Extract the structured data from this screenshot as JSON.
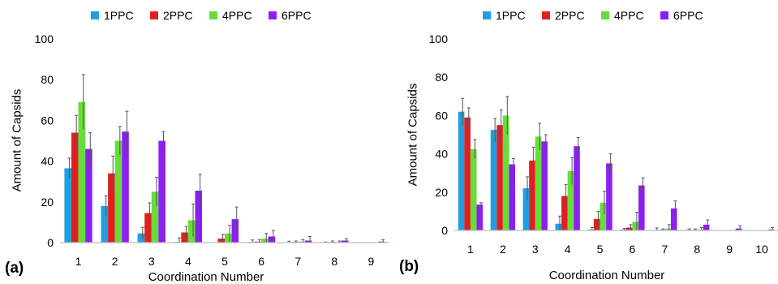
{
  "chart_data": [
    {
      "type": "bar",
      "panel_label": "(a)",
      "categories": [
        "1",
        "2",
        "3",
        "4",
        "5",
        "6",
        "7",
        "8",
        "9"
      ],
      "xlabel": "Coordination Number",
      "ylabel": "Amount of Capsids",
      "ylim": [
        0,
        100
      ],
      "yticks": [
        "0",
        "20",
        "40",
        "60",
        "80",
        "100"
      ],
      "legend_position": "top",
      "series": [
        {
          "name": "1PPC",
          "color": "#1f9fe0",
          "values": [
            36.5,
            18,
            4.5,
            0.3,
            0,
            0.3,
            0.2,
            0,
            0
          ],
          "errors": [
            5,
            5,
            3,
            2,
            0,
            1,
            0.5,
            0.3,
            0
          ]
        },
        {
          "name": "2PPC",
          "color": "#e02020",
          "values": [
            54,
            34,
            14.5,
            5,
            2,
            0.5,
            0.3,
            0.3,
            0
          ],
          "errors": [
            8.5,
            8.5,
            5,
            3,
            2,
            1,
            0.5,
            0.5,
            0
          ]
        },
        {
          "name": "4PPC",
          "color": "#66dd3a",
          "values": [
            69,
            50,
            25,
            11,
            4.5,
            2,
            0.5,
            0.3,
            0
          ],
          "errors": [
            13.5,
            7,
            7,
            8,
            4,
            2.5,
            1,
            0.5,
            0
          ]
        },
        {
          "name": "6PPC",
          "color": "#8b1ff0",
          "values": [
            46,
            54.5,
            50,
            25.5,
            11.5,
            3,
            1,
            1,
            0.5
          ],
          "errors": [
            8,
            10,
            4.5,
            8,
            6,
            3,
            2,
            1,
            1
          ]
        }
      ]
    },
    {
      "type": "bar",
      "panel_label": "(b)",
      "categories": [
        "1",
        "2",
        "3",
        "4",
        "5",
        "6",
        "7",
        "8",
        "9",
        "10"
      ],
      "xlabel": "Coordination Number",
      "ylabel": "Amount of Capsids",
      "ylim": [
        0,
        100
      ],
      "yticks": [
        "0",
        "20",
        "40",
        "60",
        "80",
        "100"
      ],
      "legend_position": "top",
      "series": [
        {
          "name": "1PPC",
          "color": "#1f9fe0",
          "values": [
            62,
            52.5,
            22,
            3.5,
            0.5,
            0.5,
            0.3,
            0.3,
            0,
            0
          ],
          "errors": [
            7,
            6,
            6,
            4,
            1,
            0.5,
            1,
            0.5,
            0,
            0
          ]
        },
        {
          "name": "2PPC",
          "color": "#e02020",
          "values": [
            59,
            55,
            36.5,
            18,
            6,
            1.5,
            0.3,
            0.3,
            0,
            0
          ],
          "errors": [
            5,
            8,
            7,
            6,
            4,
            1.5,
            0.5,
            0.5,
            0,
            0
          ]
        },
        {
          "name": "4PPC",
          "color": "#66dd3a",
          "values": [
            42.5,
            60,
            49,
            31,
            14.5,
            4.5,
            1,
            0.5,
            0,
            0
          ],
          "errors": [
            5,
            10,
            7,
            7,
            6,
            5,
            2,
            1,
            0,
            0
          ]
        },
        {
          "name": "6PPC",
          "color": "#8b1ff0",
          "values": [
            13.5,
            34.5,
            46.5,
            44,
            35,
            23.5,
            11.5,
            3,
            1,
            0.5
          ],
          "errors": [
            1,
            3,
            3.5,
            4.5,
            5,
            4,
            4,
            2.5,
            1.5,
            1
          ]
        }
      ]
    }
  ]
}
